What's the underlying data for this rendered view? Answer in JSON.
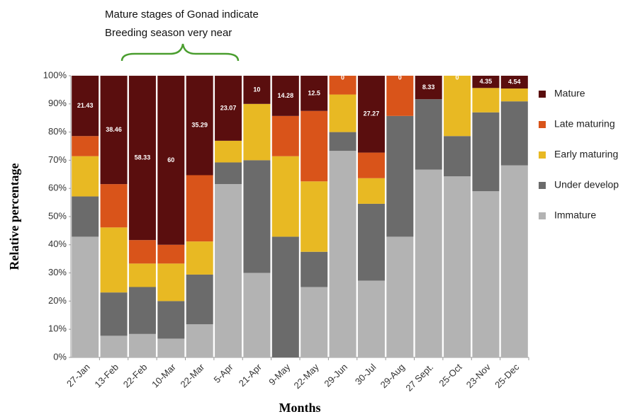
{
  "chart_data": {
    "type": "stacked_bar",
    "annotations": [
      "Mature stages of Gonad indicate",
      "Breeding season very near"
    ],
    "x_label": "Months",
    "y_label": "Relative percentage",
    "categories": [
      "27-Jan",
      "13-Feb",
      "22-Feb",
      "10-Mar",
      "22-Mar",
      "5-Apr",
      "21-Apr",
      "9-May",
      "22-May",
      "29-Jun",
      "30-Jul",
      "29-Aug",
      "27 Sept.",
      "25-Oct",
      "23-Nov",
      "25-Dec"
    ],
    "series": [
      {
        "name": "Immature",
        "color": "#b3b3b3",
        "values": [
          42.86,
          7.69,
          8.33,
          6.67,
          11.76,
          61.54,
          30,
          0,
          25,
          73.33,
          27.27,
          42.86,
          66.67,
          64.29,
          59,
          68.18
        ]
      },
      {
        "name": "Under develop",
        "color": "#6b6b6b",
        "values": [
          14.29,
          15.38,
          16.67,
          13.33,
          17.65,
          7.69,
          40,
          42.86,
          12.5,
          6.67,
          27.27,
          42.86,
          25,
          14.29,
          28,
          22.73
        ]
      },
      {
        "name": "Early maturing",
        "color": "#e8b923",
        "values": [
          14.29,
          23.08,
          8.33,
          13.33,
          11.76,
          7.69,
          20,
          28.57,
          25,
          13.33,
          9.09,
          0,
          0,
          21.43,
          8.65,
          4.55
        ]
      },
      {
        "name": "Late maturing",
        "color": "#d9541a",
        "values": [
          7.14,
          15.38,
          8.33,
          6.67,
          23.53,
          0,
          0,
          14.29,
          25,
          6.67,
          9.09,
          14.29,
          0,
          0,
          0,
          0
        ]
      },
      {
        "name": "Mature",
        "color": "#5a0e0e",
        "values": [
          21.43,
          38.46,
          58.33,
          60,
          35.29,
          23.07,
          10,
          14.28,
          12.5,
          0,
          27.27,
          0,
          8.33,
          0,
          4.35,
          4.54
        ]
      }
    ],
    "ylim": [
      0,
      100
    ],
    "yticks": [
      {
        "value": 0,
        "label": "0%"
      },
      {
        "value": 10,
        "label": "10%"
      },
      {
        "value": 20,
        "label": "20%"
      },
      {
        "value": 30,
        "label": "30%"
      },
      {
        "value": 40,
        "label": "40%"
      },
      {
        "value": 50,
        "label": "50%"
      },
      {
        "value": 60,
        "label": "60%"
      },
      {
        "value": 70,
        "label": "70%"
      },
      {
        "value": 80,
        "label": "80%"
      },
      {
        "value": 90,
        "label": "90%"
      },
      {
        "value": 100,
        "label": "100%"
      }
    ],
    "labeled_series": 4,
    "grid": false
  }
}
